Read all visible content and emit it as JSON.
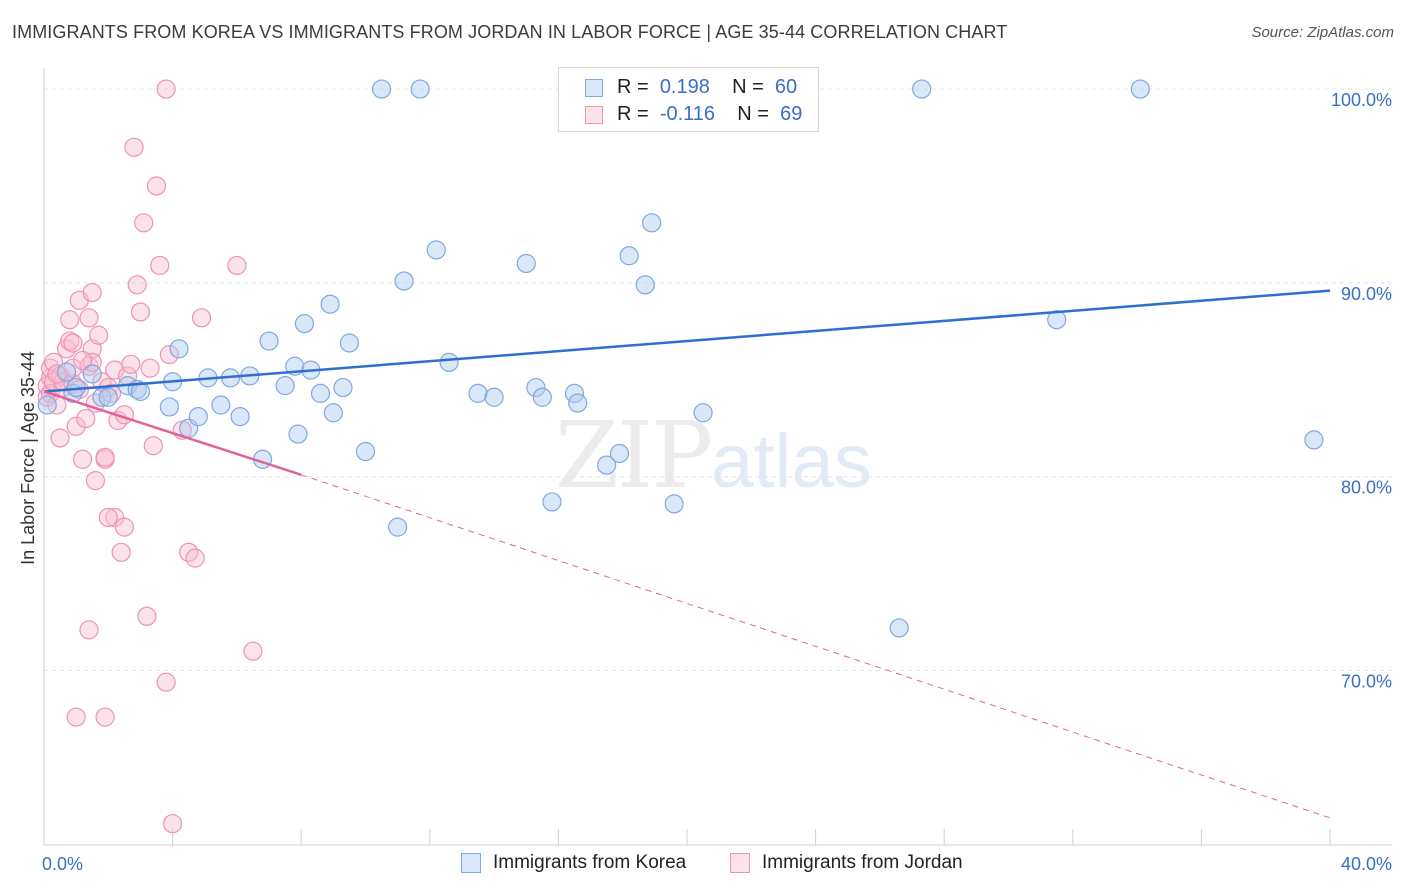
{
  "title": "IMMIGRANTS FROM KOREA VS IMMIGRANTS FROM JORDAN IN LABOR FORCE | AGE 35-44 CORRELATION CHART",
  "source": "Source: ZipAtlas.com",
  "watermark": {
    "zip": "ZIP",
    "atlas": "atlas"
  },
  "legend": {
    "rows": [
      {
        "r_label": "R =",
        "r_value": "0.198",
        "n_label": "N =",
        "n_value": "60"
      },
      {
        "r_label": "R =",
        "r_value": "-0.116",
        "n_label": "N =",
        "n_value": "69"
      }
    ]
  },
  "colors": {
    "korea_fill": "rgba(173,202,240,0.45)",
    "korea_stroke": "#7fa8e0",
    "korea_line": "#2f6fcf",
    "jordan_fill": "rgba(248,190,208,0.45)",
    "jordan_stroke": "#ee93b2",
    "jordan_line": "#e0649a",
    "grid": "#e4e4e4",
    "tick_text": "#3a6fc4"
  },
  "chart_data": {
    "type": "scatter",
    "title": "IMMIGRANTS FROM KOREA VS IMMIGRANTS FROM JORDAN IN LABOR FORCE | AGE 35-44 CORRELATION CHART",
    "xlabel": "",
    "ylabel": "In Labor Force | Age 35-44",
    "xlim": [
      0,
      40
    ],
    "ylim": [
      61,
      101.5
    ],
    "x_ticks": [
      0,
      40
    ],
    "x_tick_labels": [
      "0.0%",
      "40.0%"
    ],
    "y_ticks": [
      70,
      80,
      90,
      100
    ],
    "y_tick_labels": [
      "70.0%",
      "80.0%",
      "90.0%",
      "100.0%"
    ],
    "legend_position": "top-center",
    "series": [
      {
        "name": "Immigrants from Korea",
        "points": [
          [
            0.1,
            83.7
          ],
          [
            0.7,
            85.4
          ],
          [
            0.9,
            84.3
          ],
          [
            1.0,
            84.6
          ],
          [
            1.5,
            85.3
          ],
          [
            1.8,
            84.1
          ],
          [
            2.0,
            84.1
          ],
          [
            2.6,
            84.7
          ],
          [
            2.9,
            84.5
          ],
          [
            3.0,
            84.4
          ],
          [
            3.9,
            83.6
          ],
          [
            4.2,
            86.6
          ],
          [
            4.5,
            82.5
          ],
          [
            4.8,
            83.1
          ],
          [
            5.1,
            85.1
          ],
          [
            5.5,
            83.7
          ],
          [
            5.8,
            85.1
          ],
          [
            6.1,
            83.1
          ],
          [
            6.4,
            85.2
          ],
          [
            6.8,
            80.9
          ],
          [
            7.0,
            87.0
          ],
          [
            7.5,
            84.7
          ],
          [
            7.8,
            85.7
          ],
          [
            7.9,
            82.2
          ],
          [
            8.3,
            85.5
          ],
          [
            8.6,
            84.3
          ],
          [
            8.9,
            88.9
          ],
          [
            9.0,
            83.3
          ],
          [
            9.3,
            84.6
          ],
          [
            9.5,
            86.9
          ],
          [
            10.0,
            81.3
          ],
          [
            10.5,
            100.0
          ],
          [
            11.0,
            77.4
          ],
          [
            11.2,
            90.1
          ],
          [
            11.7,
            100.0
          ],
          [
            12.2,
            91.7
          ],
          [
            12.6,
            85.9
          ],
          [
            13.5,
            84.3
          ],
          [
            14.0,
            84.1
          ],
          [
            15.0,
            91.0
          ],
          [
            15.3,
            84.6
          ],
          [
            15.5,
            84.1
          ],
          [
            15.8,
            78.7
          ],
          [
            16.5,
            84.3
          ],
          [
            16.6,
            83.8
          ],
          [
            17.3,
            100.0
          ],
          [
            17.5,
            80.6
          ],
          [
            17.9,
            81.2
          ],
          [
            18.2,
            91.4
          ],
          [
            18.7,
            89.9
          ],
          [
            18.9,
            93.1
          ],
          [
            19.6,
            78.6
          ],
          [
            20.5,
            83.3
          ],
          [
            26.6,
            72.2
          ],
          [
            27.3,
            100.0
          ],
          [
            31.5,
            88.1
          ],
          [
            34.1,
            100.0
          ],
          [
            39.5,
            81.9
          ],
          [
            8.1,
            87.9
          ],
          [
            4.0,
            84.9
          ]
        ],
        "trendline": {
          "x": [
            0,
            40
          ],
          "y": [
            84.4,
            89.6
          ]
        }
      },
      {
        "name": "Immigrants from Jordan",
        "points": [
          [
            0.1,
            84.1
          ],
          [
            0.1,
            84.7
          ],
          [
            0.2,
            85.1
          ],
          [
            0.2,
            84.3
          ],
          [
            0.2,
            85.6
          ],
          [
            0.3,
            84.9
          ],
          [
            0.3,
            85.9
          ],
          [
            0.4,
            83.7
          ],
          [
            0.5,
            82.0
          ],
          [
            0.5,
            85.2
          ],
          [
            0.6,
            84.6
          ],
          [
            0.6,
            84.9
          ],
          [
            0.7,
            86.6
          ],
          [
            0.8,
            87.0
          ],
          [
            0.8,
            88.1
          ],
          [
            0.9,
            84.8
          ],
          [
            0.9,
            85.6
          ],
          [
            0.9,
            86.9
          ],
          [
            1.0,
            82.6
          ],
          [
            1.0,
            67.6
          ],
          [
            1.1,
            89.1
          ],
          [
            1.1,
            84.5
          ],
          [
            1.2,
            80.9
          ],
          [
            1.3,
            83.0
          ],
          [
            1.4,
            85.7
          ],
          [
            1.4,
            72.1
          ],
          [
            1.4,
            88.2
          ],
          [
            1.5,
            89.5
          ],
          [
            1.5,
            86.6
          ],
          [
            1.5,
            85.9
          ],
          [
            1.6,
            79.8
          ],
          [
            1.6,
            83.8
          ],
          [
            1.7,
            87.3
          ],
          [
            1.8,
            84.9
          ],
          [
            1.9,
            80.9
          ],
          [
            1.9,
            67.6
          ],
          [
            1.9,
            81.0
          ],
          [
            2.0,
            84.6
          ],
          [
            2.1,
            84.3
          ],
          [
            2.2,
            85.5
          ],
          [
            2.2,
            77.9
          ],
          [
            2.3,
            82.9
          ],
          [
            2.4,
            76.1
          ],
          [
            2.5,
            83.2
          ],
          [
            2.6,
            85.2
          ],
          [
            2.7,
            85.8
          ],
          [
            2.8,
            97.0
          ],
          [
            2.9,
            89.9
          ],
          [
            3.0,
            88.5
          ],
          [
            3.1,
            93.1
          ],
          [
            3.2,
            72.8
          ],
          [
            3.3,
            85.6
          ],
          [
            3.4,
            81.6
          ],
          [
            3.5,
            95.0
          ],
          [
            3.6,
            90.9
          ],
          [
            3.8,
            100.0
          ],
          [
            3.8,
            69.4
          ],
          [
            3.9,
            86.3
          ],
          [
            4.0,
            62.1
          ],
          [
            4.3,
            82.4
          ],
          [
            4.5,
            76.1
          ],
          [
            4.7,
            75.8
          ],
          [
            4.9,
            88.2
          ],
          [
            6.0,
            90.9
          ],
          [
            6.5,
            71.0
          ],
          [
            2.0,
            77.9
          ],
          [
            0.4,
            85.3
          ],
          [
            2.5,
            77.4
          ],
          [
            1.2,
            86.0
          ]
        ],
        "trendline_solid": {
          "x": [
            0,
            8
          ],
          "y": [
            84.4,
            80.1
          ]
        },
        "trendline_dashed": {
          "x": [
            8,
            40
          ],
          "y": [
            80.1,
            62.4
          ]
        }
      }
    ]
  }
}
